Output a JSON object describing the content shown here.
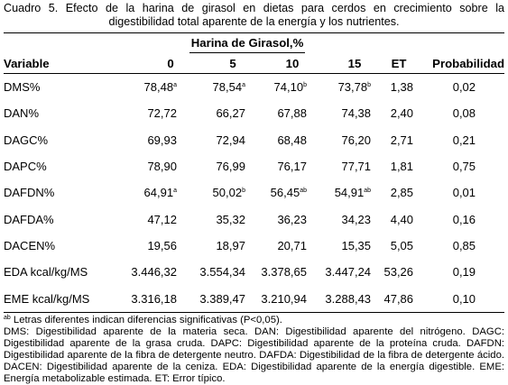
{
  "caption": "Cuadro 5. Efecto de la harina de girasol en dietas para cerdos en crecimiento sobre la digestibilidad total aparente de la energía y los nutrientes.",
  "table": {
    "group_header": "Harina de Girasol,%",
    "columns": [
      "Variable",
      "0",
      "5",
      "10",
      "15",
      "ET",
      "Probabilidad"
    ],
    "rows": [
      {
        "variable": "DMS%",
        "c0": "78,48",
        "c0_sup": "a",
        "c5": "78,54",
        "c5_sup": "a",
        "c10": "74,10",
        "c10_sup": "b",
        "c15": "73,78",
        "c15_sup": "b",
        "et": "1,38",
        "prob": "0,02"
      },
      {
        "variable": "DAN%",
        "c0": "72,72",
        "c0_sup": "",
        "c5": "66,27",
        "c5_sup": "",
        "c10": "67,88",
        "c10_sup": "",
        "c15": "74,38",
        "c15_sup": "",
        "et": "2,40",
        "prob": "0,08"
      },
      {
        "variable": "DAGC%",
        "c0": "69,93",
        "c0_sup": "",
        "c5": "72,94",
        "c5_sup": "",
        "c10": "68,48",
        "c10_sup": "",
        "c15": "76,20",
        "c15_sup": "",
        "et": "2,71",
        "prob": "0,21"
      },
      {
        "variable": "DAPC%",
        "c0": "78,90",
        "c0_sup": "",
        "c5": "76,99",
        "c5_sup": "",
        "c10": "76,17",
        "c10_sup": "",
        "c15": "77,71",
        "c15_sup": "",
        "et": "1,81",
        "prob": "0,75"
      },
      {
        "variable": "DAFDN%",
        "c0": "64,91",
        "c0_sup": "a",
        "c5": "50,02",
        "c5_sup": "b",
        "c10": "56,45",
        "c10_sup": "ab",
        "c15": "54,91",
        "c15_sup": "ab",
        "et": "2,85",
        "prob": "0,01"
      },
      {
        "variable": "DAFDA%",
        "c0": "47,12",
        "c0_sup": "",
        "c5": "35,32",
        "c5_sup": "",
        "c10": "36,23",
        "c10_sup": "",
        "c15": "34,23",
        "c15_sup": "",
        "et": "4,40",
        "prob": "0,16"
      },
      {
        "variable": "DACEN%",
        "c0": "19,56",
        "c0_sup": "",
        "c5": "18,97",
        "c5_sup": "",
        "c10": "20,71",
        "c10_sup": "",
        "c15": "15,35",
        "c15_sup": "",
        "et": "5,05",
        "prob": "0,85"
      },
      {
        "variable": "EDA kcal/kg/MS",
        "c0": "3.446,32",
        "c0_sup": "",
        "c5": "3.554,34",
        "c5_sup": "",
        "c10": "3.378,65",
        "c10_sup": "",
        "c15": "3.447,24",
        "c15_sup": "",
        "et": "53,26",
        "prob": "0,19"
      },
      {
        "variable": "EME kcal/kg/MS",
        "c0": "3.316,18",
        "c0_sup": "",
        "c5": "3.389,47",
        "c5_sup": "",
        "c10": "3.210,94",
        "c10_sup": "",
        "c15": "3.288,43",
        "c15_sup": "",
        "et": "47,86",
        "prob": "0,10"
      }
    ]
  },
  "footnotes": {
    "sig_marker": "ab",
    "sig_text": " Letras diferentes indican diferencias significativas (P<0,05).",
    "abbreviations": "DMS: Digestibilidad aparente de la materia seca. DAN: Digestibilidad aparente del nitrógeno. DAGC: Digestibilidad aparente de la grasa cruda. DAPC: Digestibilidad aparente de la proteína cruda. DAFDN: Digestibilidad aparente de la fibra de detergente neutro. DAFDA: Digestibilidad de la fibra de detergente ácido. DACEN: Digestibilidad aparente de la ceniza. EDA: Digestibilidad aparente de la energía digestible. EME: Energía metabolizable estimada. ET: Error típico."
  }
}
